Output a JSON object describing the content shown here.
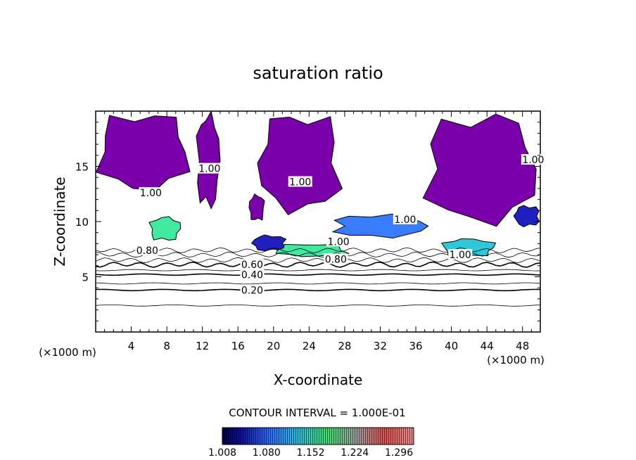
{
  "chart_data": {
    "type": "heatmap",
    "title": "saturation ratio",
    "xlabel": "X-coordinate",
    "ylabel": "Z-coordinate",
    "x_unit_left": "(×1000 m)",
    "x_unit_right": "(×1000 m)",
    "xlim": [
      0,
      50
    ],
    "ylim": [
      0,
      20
    ],
    "x_ticks": [
      "4",
      "8",
      "12",
      "16",
      "20",
      "24",
      "28",
      "32",
      "36",
      "40",
      "44",
      "48"
    ],
    "y_ticks": [
      "5",
      "10",
      "15"
    ],
    "contour_interval_label": "CONTOUR INTERVAL = 1.000E-01",
    "colorbar": {
      "min": 1.008,
      "max": 1.32,
      "labels": [
        "1.008",
        "1.080",
        "1.152",
        "1.224",
        "1.296"
      ]
    },
    "contour_labels": [
      {
        "text": "0.20",
        "x": 17.6,
        "y": 3.8
      },
      {
        "text": "0.40",
        "x": 17.6,
        "y": 5.2
      },
      {
        "text": "0.60",
        "x": 17.6,
        "y": 6.1
      },
      {
        "text": "0.80",
        "x": 5.8,
        "y": 7.4
      },
      {
        "text": "0.80",
        "x": 27.0,
        "y": 6.6
      },
      {
        "text": "1.00",
        "x": 6.2,
        "y": 12.6
      },
      {
        "text": "1.00",
        "x": 12.8,
        "y": 14.8
      },
      {
        "text": "1.00",
        "x": 23.0,
        "y": 13.6
      },
      {
        "text": "1.00",
        "x": 34.8,
        "y": 10.2
      },
      {
        "text": "1.00",
        "x": 41.0,
        "y": 7.0
      },
      {
        "text": "1.00",
        "x": 49.2,
        "y": 15.6
      },
      {
        "text": "1.00",
        "x": 27.3,
        "y": 8.2
      }
    ],
    "supersaturated_regions": [
      {
        "x": [
          0.0,
          10.8
        ],
        "z": [
          12.6,
          20.0
        ],
        "value": 1.0
      },
      {
        "x": [
          11.3,
          14.0
        ],
        "z": [
          11.0,
          20.0
        ],
        "value": 1.0
      },
      {
        "x": [
          17.2,
          19.0
        ],
        "z": [
          10.0,
          12.5
        ],
        "value": 1.0
      },
      {
        "x": [
          18.0,
          27.8
        ],
        "z": [
          10.6,
          20.0
        ],
        "value": 1.0
      },
      {
        "x": [
          36.8,
          50.0
        ],
        "z": [
          9.5,
          20.0
        ],
        "value": 1.0
      },
      {
        "x": [
          6.0,
          9.6
        ],
        "z": [
          8.2,
          10.5
        ],
        "value": 1.15
      },
      {
        "x": [
          17.5,
          21.5
        ],
        "z": [
          7.3,
          8.8
        ],
        "value": 1.03
      },
      {
        "x": [
          20.0,
          28.5
        ],
        "z": [
          6.8,
          8.0
        ],
        "value": 1.12
      },
      {
        "x": [
          26.5,
          37.5
        ],
        "z": [
          8.5,
          10.7
        ],
        "value": 1.04
      },
      {
        "x": [
          38.8,
          45.0
        ],
        "z": [
          6.8,
          8.5
        ],
        "value": 1.1
      },
      {
        "x": [
          47.0,
          50.0
        ],
        "z": [
          9.5,
          11.5
        ],
        "value": 1.02
      }
    ]
  }
}
